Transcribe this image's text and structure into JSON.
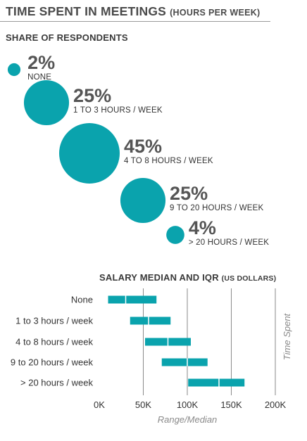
{
  "header": {
    "title": "TIME SPENT IN MEETINGS",
    "title_sub": "(HOURS PER WEEK)",
    "section": "SHARE OF RESPONDENTS"
  },
  "colors": {
    "accent": "#0aa3ad",
    "text": "#3c3c3c",
    "grid": "#8a8a8a"
  },
  "chart_data": [
    {
      "type": "bubble",
      "title": "SHARE OF RESPONDENTS",
      "unit": "%",
      "categories": [
        "NONE",
        "1 TO 3 HOURS / WEEK",
        "4 TO 8 HOURS / WEEK",
        "9 TO 20 HOURS / WEEK",
        "> 20 HOURS / WEEK"
      ],
      "values": [
        2,
        25,
        45,
        25,
        4
      ],
      "labels": [
        "2%",
        "25%",
        "45%",
        "25%",
        "4%"
      ]
    },
    {
      "type": "boxplot",
      "title": "SALARY MEDIAN AND IQR",
      "title_sub": "(US DOLLARS)",
      "orientation": "horizontal",
      "categories": [
        "None",
        "1 to 3 hours / week",
        "4 to 8 hours / week",
        "9 to 20 hours / week",
        "> 20 hours / week"
      ],
      "series": [
        {
          "q1": 10000,
          "median": 30000,
          "q3": 65000
        },
        {
          "q1": 35000,
          "median": 56000,
          "q3": 81000
        },
        {
          "q1": 52000,
          "median": 78000,
          "q3": 104000
        },
        {
          "q1": 71000,
          "median": 100000,
          "q3": 123000
        },
        {
          "q1": 101000,
          "median": 136000,
          "q3": 165000
        }
      ],
      "xlim": [
        0,
        200000
      ],
      "xticks": [
        0,
        50000,
        100000,
        150000,
        200000
      ],
      "xtick_labels": [
        "0K",
        "50K",
        "100K",
        "150K",
        "200K"
      ],
      "xlabel": "Range/Median",
      "ylabel": "Time Spent",
      "grid": "vertical"
    }
  ]
}
